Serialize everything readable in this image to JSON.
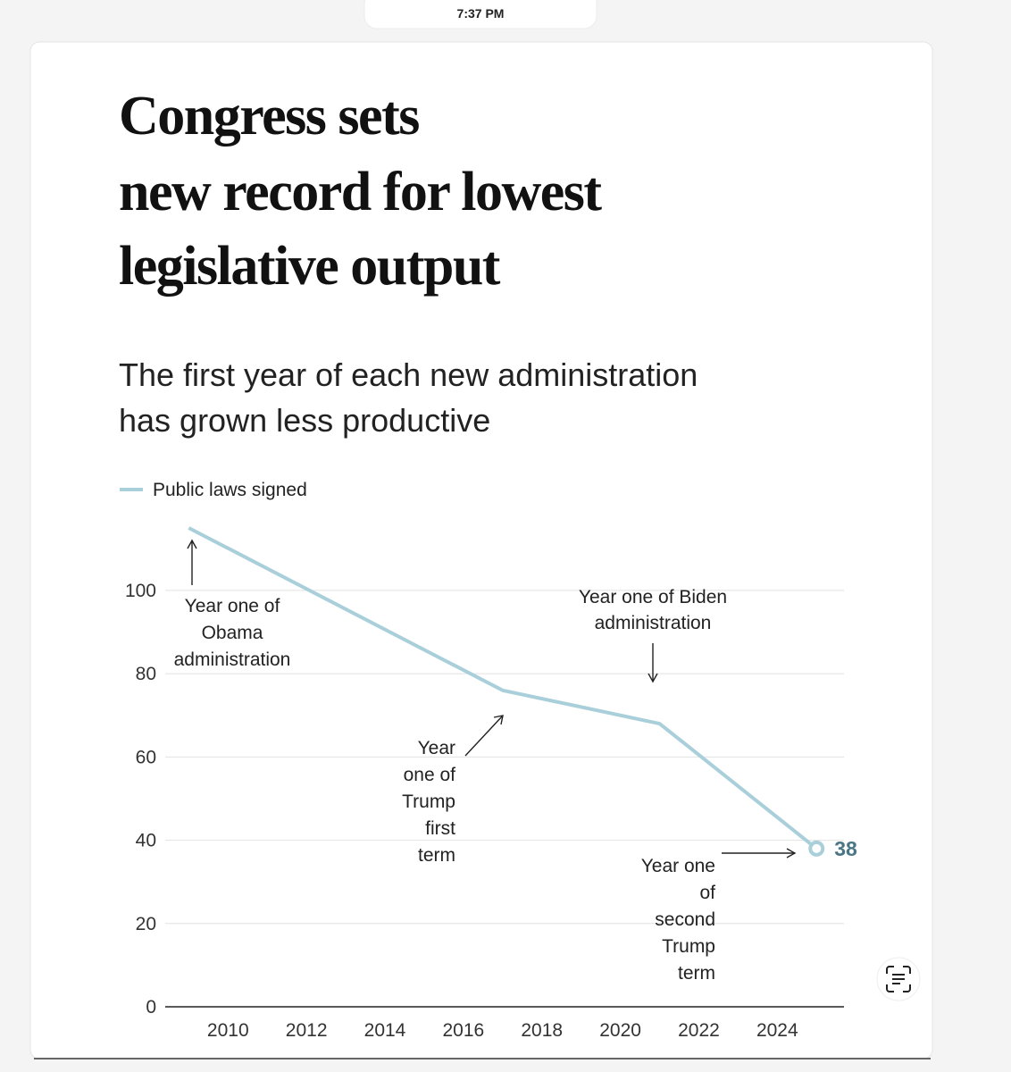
{
  "status_time": "7:37 PM",
  "chart_data": {
    "type": "line",
    "title_lines": [
      "Congress sets",
      "new record for lowest",
      "legislative output"
    ],
    "subtitle_lines": [
      "The first year of each new administration",
      "has grown less productive"
    ],
    "x": [
      2009,
      2017,
      2021,
      2025
    ],
    "series": [
      {
        "name": "Public laws signed",
        "color": "#a9cfda",
        "values": [
          115,
          76,
          68,
          38
        ]
      }
    ],
    "xlim": [
      2008.4,
      2025.7
    ],
    "xticks": [
      2010,
      2012,
      2014,
      2016,
      2018,
      2020,
      2022,
      2024
    ],
    "ylim": [
      0,
      115
    ],
    "yticks": [
      0,
      20,
      40,
      60,
      80,
      100
    ],
    "grid": true,
    "annotations": [
      {
        "lines": [
          "Year one of",
          "Obama",
          "administration"
        ]
      },
      {
        "lines": [
          "Year",
          "one of",
          "Trump",
          "first",
          "term"
        ]
      },
      {
        "lines": [
          "Year one of Biden",
          "administration"
        ]
      },
      {
        "lines": [
          "Year one",
          "of",
          "second",
          "Trump",
          "term"
        ]
      }
    ]
  }
}
